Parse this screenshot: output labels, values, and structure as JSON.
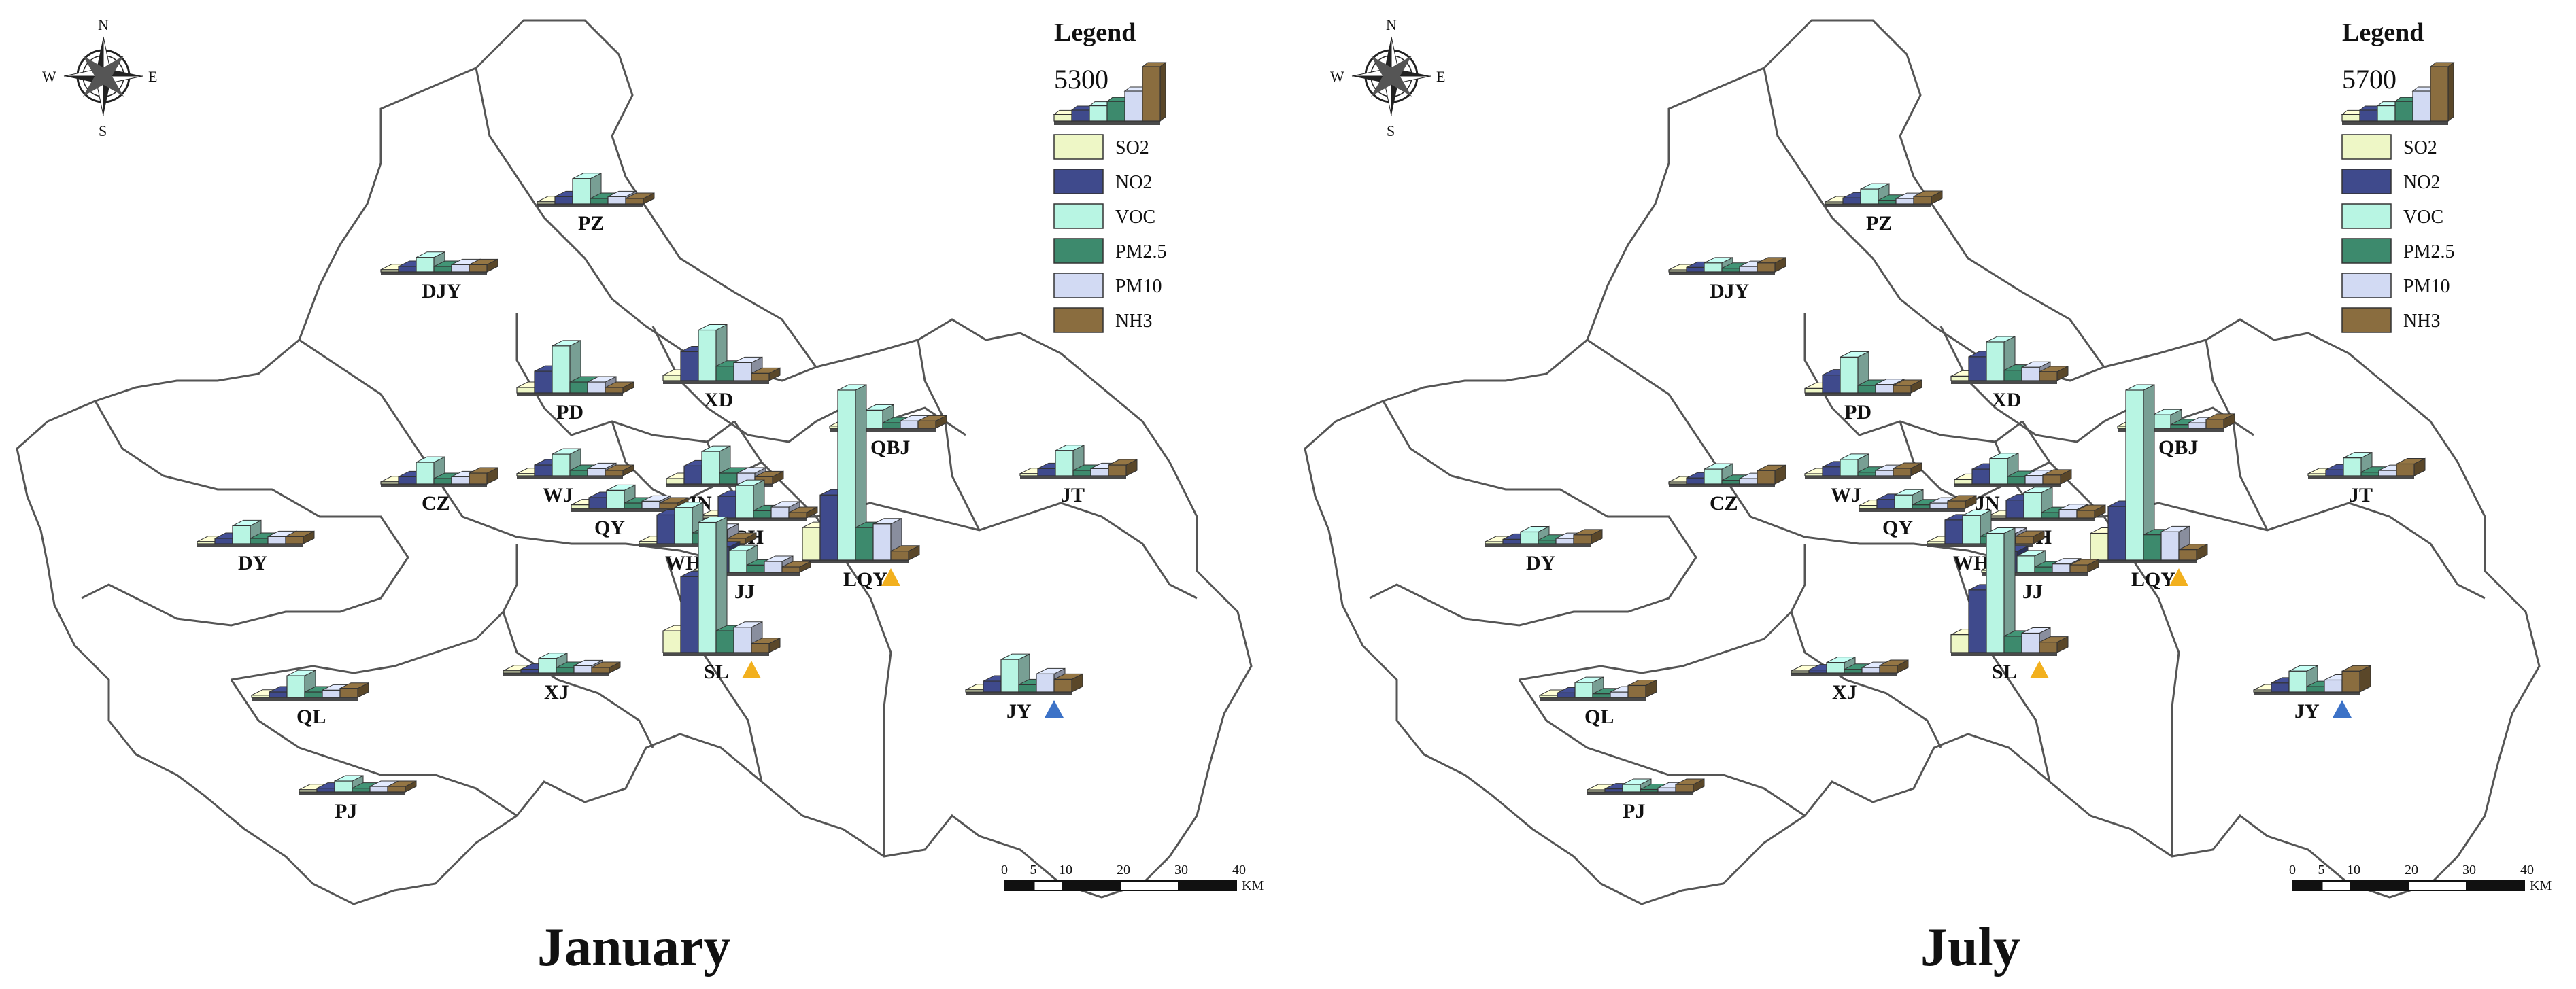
{
  "compass": {
    "n": "N",
    "s": "S",
    "e": "E",
    "w": "W"
  },
  "legend": {
    "title": "Legend",
    "species": [
      "SO2",
      "NO2",
      "VOC",
      "PM2.5",
      "PM10",
      "NH3"
    ]
  },
  "pollutant_colors": {
    "SO2": "#eef7c6",
    "NO2": "#3f4a8c",
    "VOC": "#b8f5e3",
    "PM2.5": "#3d8a6d",
    "PM10": "#d2daf3",
    "NH3": "#8a6d3f"
  },
  "markers": {
    "triangle_orange": "#f2b01e",
    "triangle_blue": "#3c72c7"
  },
  "scalebar": {
    "ticks": [
      "0",
      "5",
      "10",
      "20",
      "30",
      "40"
    ],
    "unit": "KM"
  },
  "maps": [
    {
      "id": "jan",
      "title": "January",
      "legend_value": "5300"
    },
    {
      "id": "jul",
      "title": "July",
      "legend_value": "5700"
    }
  ],
  "districts": [
    "PZ",
    "DJY",
    "PD",
    "XD",
    "QBJ",
    "JT",
    "CZ",
    "WJ",
    "JN",
    "QY",
    "CH",
    "DY",
    "WH",
    "LQY",
    "JJ",
    "SL",
    "XJ",
    "QL",
    "JY",
    "PJ"
  ],
  "chart_data": [
    {
      "type": "bar",
      "title": "January",
      "categories": [
        "PZ",
        "DJY",
        "PD",
        "XD",
        "QBJ",
        "JT",
        "CZ",
        "WJ",
        "JN",
        "QY",
        "CH",
        "DY",
        "WH",
        "LQY",
        "JJ",
        "SL",
        "XJ",
        "QL",
        "JY",
        "PJ"
      ],
      "series": [
        {
          "name": "SO2",
          "values": [
            60,
            60,
            150,
            150,
            60,
            60,
            60,
            60,
            150,
            100,
            60,
            60,
            60,
            900,
            60,
            600,
            60,
            60,
            60,
            60
          ]
        },
        {
          "name": "NO2",
          "values": [
            200,
            150,
            600,
            800,
            200,
            200,
            200,
            300,
            500,
            300,
            600,
            150,
            800,
            1800,
            700,
            2100,
            100,
            150,
            300,
            100
          ]
        },
        {
          "name": "VOC",
          "values": [
            700,
            400,
            1300,
            1400,
            500,
            700,
            600,
            600,
            900,
            500,
            900,
            500,
            1000,
            4700,
            600,
            3600,
            400,
            600,
            900,
            300
          ]
        },
        {
          "name": "PM2.5",
          "values": [
            150,
            150,
            300,
            400,
            150,
            150,
            150,
            150,
            300,
            150,
            200,
            150,
            300,
            900,
            200,
            600,
            150,
            150,
            200,
            100
          ]
        },
        {
          "name": "PM10",
          "values": [
            200,
            200,
            300,
            500,
            200,
            200,
            200,
            200,
            300,
            200,
            300,
            200,
            400,
            1000,
            300,
            700,
            200,
            200,
            500,
            150
          ]
        },
        {
          "name": "NH3",
          "values": [
            150,
            200,
            150,
            200,
            200,
            300,
            300,
            150,
            200,
            150,
            150,
            200,
            150,
            250,
            150,
            250,
            150,
            250,
            350,
            150
          ]
        }
      ]
    },
    {
      "type": "bar",
      "title": "July",
      "categories": [
        "PZ",
        "DJY",
        "PD",
        "XD",
        "QBJ",
        "JT",
        "CZ",
        "WJ",
        "JN",
        "QY",
        "CH",
        "DY",
        "WH",
        "LQY",
        "JJ",
        "SL",
        "XJ",
        "QL",
        "JY",
        "PJ"
      ],
      "series": [
        {
          "name": "SO2",
          "values": [
            60,
            60,
            150,
            150,
            60,
            60,
            60,
            60,
            150,
            100,
            60,
            60,
            60,
            900,
            60,
            600,
            60,
            60,
            60,
            60
          ]
        },
        {
          "name": "NO2",
          "values": [
            200,
            150,
            600,
            800,
            200,
            200,
            200,
            300,
            500,
            300,
            600,
            150,
            800,
            1800,
            700,
            2100,
            100,
            150,
            300,
            100
          ]
        },
        {
          "name": "VOC",
          "values": [
            500,
            300,
            1200,
            1300,
            450,
            600,
            500,
            550,
            850,
            450,
            850,
            400,
            950,
            5700,
            550,
            4000,
            350,
            500,
            700,
            250
          ]
        },
        {
          "name": "PM2.5",
          "values": [
            120,
            120,
            250,
            350,
            120,
            120,
            120,
            120,
            250,
            120,
            180,
            120,
            250,
            850,
            180,
            550,
            120,
            120,
            180,
            80
          ]
        },
        {
          "name": "PM10",
          "values": [
            180,
            180,
            280,
            450,
            180,
            180,
            180,
            180,
            280,
            180,
            280,
            180,
            350,
            950,
            280,
            650,
            180,
            180,
            400,
            130
          ]
        },
        {
          "name": "NH3",
          "values": [
            250,
            300,
            250,
            300,
            300,
            400,
            450,
            250,
            300,
            250,
            250,
            300,
            250,
            350,
            250,
            350,
            250,
            400,
            700,
            250
          ]
        }
      ]
    }
  ]
}
